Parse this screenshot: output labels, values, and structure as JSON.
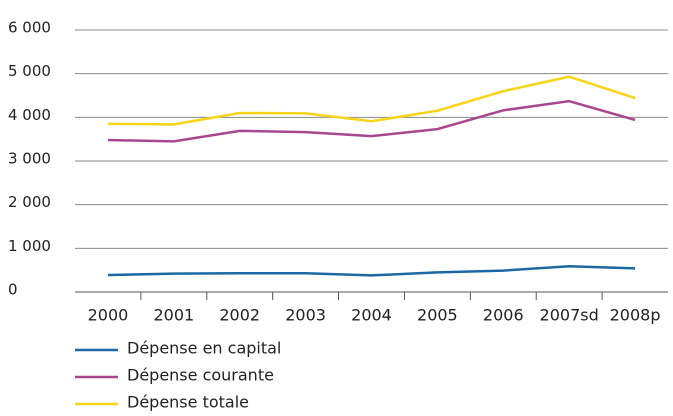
{
  "chart_data": {
    "type": "line",
    "categories": [
      "2000",
      "2001",
      "2002",
      "2003",
      "2004",
      "2005",
      "2006",
      "2007sd",
      "2008p"
    ],
    "series": [
      {
        "name": "Dépense en capital",
        "color": "#1a68a3",
        "values": [
          390,
          420,
          430,
          430,
          380,
          450,
          490,
          590,
          540
        ]
      },
      {
        "name": "Dépense courante",
        "color": "#a8468f",
        "values": [
          3480,
          3450,
          3690,
          3660,
          3570,
          3730,
          4160,
          4370,
          3940
        ]
      },
      {
        "name": "Dépense totale",
        "color": "#f7d417",
        "values": [
          3850,
          3840,
          4100,
          4090,
          3910,
          4150,
          4600,
          4930,
          4440
        ]
      }
    ],
    "ylim": [
      0,
      6000
    ],
    "yticks": [
      0,
      {
        "value": 1000,
        "label": "1 000"
      },
      {
        "value": 2000,
        "label": "2 000"
      },
      {
        "value": 3000,
        "label": "3 000"
      },
      {
        "value": 4000,
        "label": "4 000"
      },
      {
        "value": 5000,
        "label": "5 000"
      },
      {
        "value": 6000,
        "label": "6 000"
      }
    ],
    "grid": true
  }
}
